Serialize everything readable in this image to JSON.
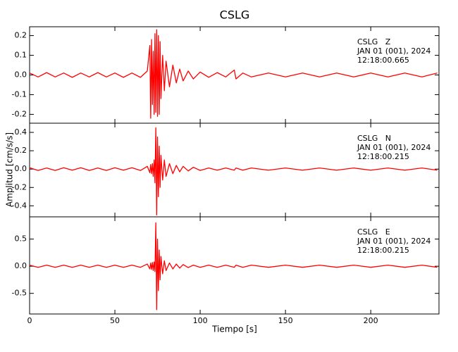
{
  "figure": {
    "title": "CSLG",
    "x_label": "Tiempo [s]",
    "y_label": "Amplitud [cm/s/s]"
  },
  "chart_data": [
    {
      "type": "line",
      "annotation": [
        "CSLG   Z",
        "JAN 01 (001), 2024",
        "12:18:00.665"
      ],
      "color": "#ff0000",
      "x": [
        0,
        5,
        10,
        15,
        20,
        25,
        30,
        35,
        40,
        45,
        50,
        55,
        60,
        65,
        69,
        70.5,
        71,
        71.5,
        72,
        72.5,
        73,
        73.5,
        74,
        74.5,
        75,
        75.5,
        76,
        76.5,
        77,
        78,
        79,
        80,
        82,
        84,
        86,
        88,
        90,
        93,
        96,
        100,
        105,
        110,
        115,
        120,
        121,
        125,
        130,
        140,
        150,
        160,
        170,
        180,
        190,
        200,
        210,
        220,
        230,
        239
      ],
      "values": [
        0.01,
        -0.01,
        0.012,
        -0.01,
        0.01,
        -0.012,
        0.01,
        -0.01,
        0.012,
        -0.01,
        0.01,
        -0.012,
        0.01,
        -0.012,
        0.02,
        0.15,
        -0.22,
        0.18,
        -0.15,
        0.12,
        -0.2,
        0.21,
        -0.19,
        0.23,
        -0.21,
        0.2,
        -0.2,
        0.17,
        -0.12,
        0.1,
        -0.08,
        0.07,
        -0.06,
        0.05,
        -0.04,
        0.03,
        -0.03,
        0.02,
        -0.02,
        0.015,
        -0.012,
        0.012,
        -0.01,
        0.025,
        -0.02,
        0.01,
        -0.01,
        0.01,
        -0.01,
        0.01,
        -0.01,
        0.01,
        -0.01,
        0.01,
        -0.01,
        0.01,
        -0.01,
        0.01
      ],
      "xlim": [
        0,
        240
      ],
      "ylim": [
        -0.245,
        0.245
      ],
      "yticks": [
        -0.2,
        -0.1,
        {
          "value": 0,
          "label": "0.0"
        },
        0.1,
        0.2
      ]
    },
    {
      "type": "line",
      "annotation": [
        "CSLG   N",
        "JAN 01 (001), 2024",
        "12:18:00.215"
      ],
      "color": "#ff0000",
      "x": [
        0,
        5,
        10,
        15,
        20,
        25,
        30,
        35,
        40,
        45,
        50,
        55,
        60,
        65,
        69,
        70.5,
        71,
        71.5,
        72,
        72.5,
        73,
        73.5,
        74,
        74.5,
        75,
        75.5,
        76,
        76.5,
        77,
        78,
        79,
        80,
        82,
        84,
        86,
        88,
        90,
        93,
        96,
        100,
        105,
        110,
        115,
        120,
        121,
        125,
        130,
        140,
        150,
        160,
        170,
        180,
        190,
        200,
        210,
        220,
        230,
        239
      ],
      "values": [
        0.015,
        -0.015,
        0.012,
        -0.015,
        0.015,
        -0.012,
        0.015,
        -0.015,
        0.012,
        -0.015,
        0.015,
        -0.012,
        0.015,
        -0.015,
        0.03,
        -0.04,
        0.05,
        -0.05,
        0.06,
        -0.08,
        0.1,
        -0.15,
        0.45,
        -0.5,
        0.35,
        -0.3,
        0.25,
        -0.2,
        0.15,
        -0.12,
        0.1,
        -0.08,
        0.06,
        -0.05,
        0.04,
        -0.03,
        0.03,
        -0.02,
        0.02,
        -0.015,
        0.012,
        -0.012,
        0.012,
        -0.012,
        0.012,
        -0.012,
        0.012,
        -0.012,
        0.012,
        -0.012,
        0.012,
        -0.012,
        0.012,
        -0.012,
        0.012,
        -0.012,
        0.012,
        -0.012
      ],
      "xlim": [
        0,
        240
      ],
      "ylim": [
        -0.52,
        0.5
      ],
      "yticks": [
        -0.4,
        -0.2,
        {
          "value": 0,
          "label": "0.0"
        },
        0.2,
        0.4
      ]
    },
    {
      "type": "line",
      "annotation": [
        "CSLG   E",
        "JAN 01 (001), 2024",
        "12:18:00.215"
      ],
      "color": "#ff0000",
      "x": [
        0,
        5,
        10,
        15,
        20,
        25,
        30,
        35,
        40,
        45,
        50,
        55,
        60,
        65,
        69,
        70.5,
        71,
        71.5,
        72,
        72.5,
        73,
        73.5,
        74,
        74.5,
        75,
        75.5,
        76,
        76.5,
        77,
        78,
        79,
        80,
        82,
        84,
        86,
        88,
        90,
        93,
        96,
        100,
        105,
        110,
        115,
        120,
        121,
        125,
        130,
        140,
        150,
        160,
        170,
        180,
        190,
        200,
        210,
        220,
        230,
        239
      ],
      "values": [
        0.02,
        -0.02,
        0.02,
        -0.02,
        0.02,
        -0.02,
        0.02,
        -0.02,
        0.02,
        -0.02,
        0.02,
        -0.02,
        0.02,
        -0.02,
        0.04,
        -0.05,
        0.06,
        -0.06,
        0.07,
        -0.08,
        0.08,
        -0.1,
        0.8,
        -0.8,
        0.5,
        -0.45,
        0.3,
        -0.25,
        0.18,
        -0.14,
        0.1,
        -0.08,
        0.06,
        -0.05,
        0.04,
        -0.035,
        0.03,
        -0.025,
        0.02,
        -0.02,
        0.02,
        -0.02,
        0.02,
        -0.02,
        0.02,
        -0.02,
        0.02,
        -0.02,
        0.02,
        -0.02,
        0.02,
        -0.02,
        0.02,
        -0.02,
        0.02,
        -0.02,
        0.02,
        -0.02
      ],
      "xlim": [
        0,
        240
      ],
      "ylim": [
        -0.88,
        0.91
      ],
      "yticks": [
        -0.5,
        {
          "value": 0,
          "label": "0.0"
        },
        0.5
      ],
      "xticks": [
        0,
        50,
        100,
        150,
        200
      ]
    }
  ]
}
